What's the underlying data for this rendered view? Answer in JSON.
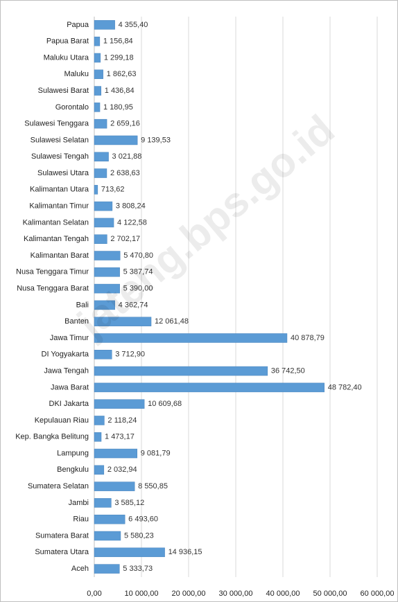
{
  "chart_data": {
    "type": "hbar",
    "categories": [
      "Papua",
      "Papua Barat",
      "Maluku Utara",
      "Maluku",
      "Sulawesi Barat",
      "Gorontalo",
      "Sulawesi Tenggara",
      "Sulawesi Selatan",
      "Sulawesi Tengah",
      "Sulawesi Utara",
      "Kalimantan Utara",
      "Kalimantan Timur",
      "Kalimantan Selatan",
      "Kalimantan Tengah",
      "Kalimantan Barat",
      "Nusa Tenggara Timur",
      "Nusa Tenggara Barat",
      "Bali",
      "Banten",
      "Jawa Timur",
      "DI Yogyakarta",
      "Jawa Tengah",
      "Jawa Barat",
      "DKI Jakarta",
      "Kepulauan Riau",
      "Kep. Bangka Belitung",
      "Lampung",
      "Bengkulu",
      "Sumatera Selatan",
      "Jambi",
      "Riau",
      "Sumatera Barat",
      "Sumatera Utara",
      "Aceh"
    ],
    "values": [
      4355.4,
      1156.84,
      1299.18,
      1862.63,
      1436.84,
      1180.95,
      2659.16,
      9139.53,
      3021.88,
      2638.63,
      713.62,
      3808.24,
      4122.58,
      2702.17,
      5470.8,
      5387.74,
      5390.0,
      4362.74,
      12061.48,
      40878.79,
      3712.9,
      36742.5,
      48782.4,
      10609.68,
      2118.24,
      1473.17,
      9081.79,
      2032.94,
      8550.85,
      3585.12,
      6493.6,
      5580.23,
      14936.15,
      5333.73
    ],
    "value_labels": [
      "4 355,40",
      "1 156,84",
      "1 299,18",
      "1 862,63",
      "1 436,84",
      "1 180,95",
      "2 659,16",
      "9 139,53",
      "3 021,88",
      "2 638,63",
      "713,62",
      "3 808,24",
      "4 122,58",
      "2 702,17",
      "5 470,80",
      "5 387,74",
      "5 390,00",
      "4 362,74",
      "12 061,48",
      "40 878,79",
      "3 712,90",
      "36 742,50",
      "48 782,40",
      "10 609,68",
      "2 118,24",
      "1 473,17",
      "9 081,79",
      "2 032,94",
      "8 550,85",
      "3 585,12",
      "6 493,60",
      "5 580,23",
      "14 936,15",
      "5 333,73"
    ],
    "color": "#5b9bd5",
    "xlim": [
      0,
      60000
    ],
    "xticks": [
      {
        "value": 0,
        "label": "0,00"
      },
      {
        "value": 10000,
        "label": "10 000,00"
      },
      {
        "value": 20000,
        "label": "20 000,00"
      },
      {
        "value": 30000,
        "label": "30 000,00"
      },
      {
        "value": 40000,
        "label": "40 000,00"
      },
      {
        "value": 50000,
        "label": "50 000,00"
      },
      {
        "value": 60000,
        "label": "60 000,00"
      }
    ],
    "grid": true,
    "watermark": "jateng.bps.go.id"
  }
}
